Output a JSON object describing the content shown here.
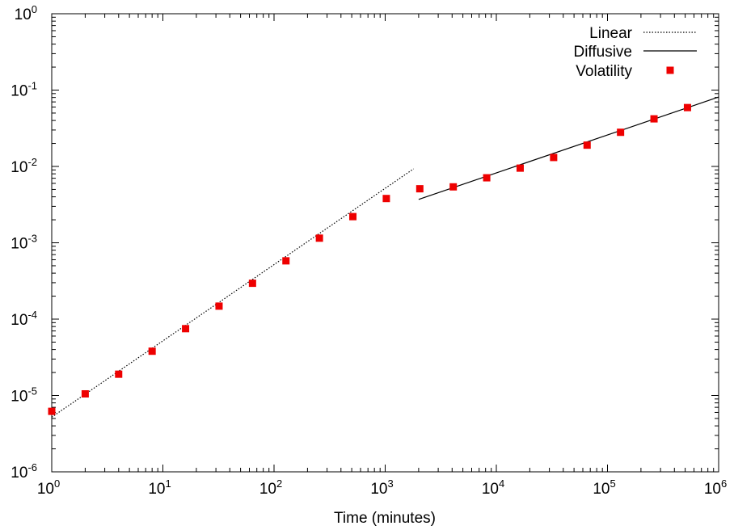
{
  "chart_data": {
    "type": "scatter",
    "xlabel": "Time (minutes)",
    "ylabel": "",
    "xscale": "log",
    "yscale": "log",
    "xlim": [
      1,
      1000000
    ],
    "ylim": [
      1e-06,
      1
    ],
    "grid": false,
    "legend_position": "top-right",
    "xticks": [
      {
        "value": 1,
        "base": "10",
        "exp": "0"
      },
      {
        "value": 10,
        "base": "10",
        "exp": "1"
      },
      {
        "value": 100,
        "base": "10",
        "exp": "2"
      },
      {
        "value": 1000,
        "base": "10",
        "exp": "3"
      },
      {
        "value": 10000,
        "base": "10",
        "exp": "4"
      },
      {
        "value": 100000,
        "base": "10",
        "exp": "5"
      },
      {
        "value": 1000000,
        "base": "10",
        "exp": "6"
      }
    ],
    "yticks": [
      {
        "value": 1e-06,
        "base": "10",
        "exp": "-6"
      },
      {
        "value": 1e-05,
        "base": "10",
        "exp": "-5"
      },
      {
        "value": 0.0001,
        "base": "10",
        "exp": "-4"
      },
      {
        "value": 0.001,
        "base": "10",
        "exp": "-3"
      },
      {
        "value": 0.01,
        "base": "10",
        "exp": "-2"
      },
      {
        "value": 0.1,
        "base": "10",
        "exp": "-1"
      },
      {
        "value": 1,
        "base": "10",
        "exp": "0"
      }
    ],
    "series": [
      {
        "name": "Linear",
        "kind": "line",
        "style": "dotted",
        "color": "#000000",
        "points": [
          [
            1,
            5.2e-06
          ],
          [
            1800,
            0.0093
          ]
        ]
      },
      {
        "name": "Diffusive",
        "kind": "line",
        "style": "solid",
        "color": "#000000",
        "points": [
          [
            2000,
            0.0037
          ],
          [
            1000000,
            0.081
          ]
        ]
      },
      {
        "name": "Volatility",
        "kind": "scatter",
        "marker": "square",
        "color": "#ee0000",
        "points": [
          [
            1,
            6.2e-06
          ],
          [
            2,
            1.05e-05
          ],
          [
            4,
            1.9e-05
          ],
          [
            8,
            3.8e-05
          ],
          [
            16,
            7.5e-05
          ],
          [
            32,
            0.000148
          ],
          [
            64,
            0.000295
          ],
          [
            128,
            0.00058
          ],
          [
            256,
            0.00115
          ],
          [
            512,
            0.0022
          ],
          [
            1024,
            0.0038
          ],
          [
            2048,
            0.0051
          ],
          [
            4096,
            0.0054
          ],
          [
            8192,
            0.0071
          ],
          [
            16384,
            0.0095
          ],
          [
            32768,
            0.0131
          ],
          [
            65536,
            0.019
          ],
          [
            131072,
            0.028
          ],
          [
            262144,
            0.042
          ],
          [
            524288,
            0.059
          ]
        ]
      }
    ]
  }
}
